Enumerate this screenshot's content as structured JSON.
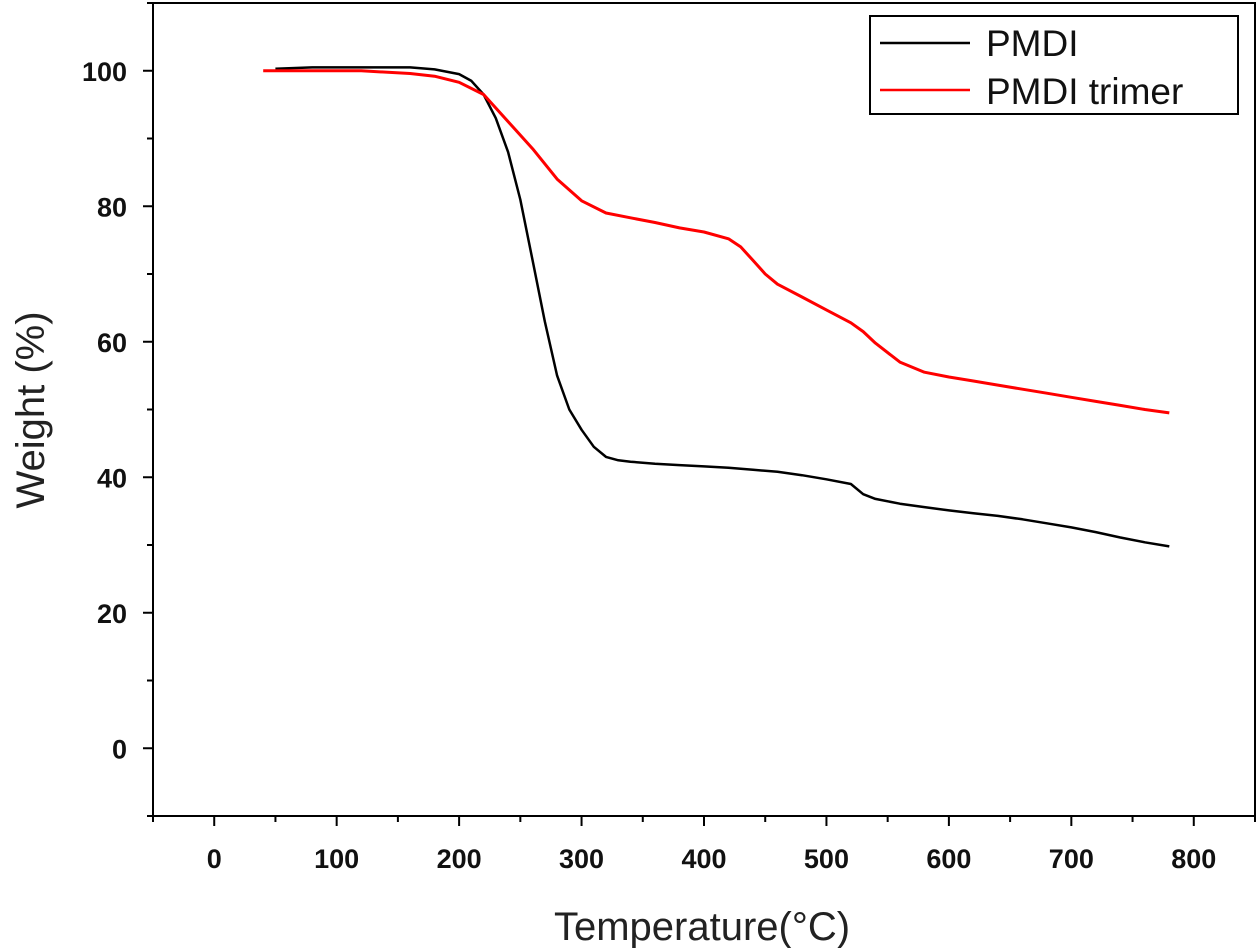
{
  "chart_data": {
    "type": "line",
    "title": "",
    "xlabel": "Temperature(°C)",
    "ylabel": "Weight (%)",
    "xlim": [
      -50,
      850
    ],
    "ylim": [
      -10,
      110
    ],
    "xticks": [
      0,
      100,
      200,
      300,
      400,
      500,
      600,
      700,
      800
    ],
    "yticks": [
      0,
      20,
      40,
      60,
      80,
      100
    ],
    "grid": false,
    "legend_position": "top-right",
    "series": [
      {
        "name": "PMDI",
        "color": "#000000",
        "x": [
          50,
          80,
          120,
          160,
          180,
          200,
          210,
          220,
          230,
          240,
          250,
          260,
          270,
          280,
          290,
          300,
          310,
          320,
          330,
          340,
          360,
          380,
          400,
          420,
          440,
          460,
          480,
          500,
          520,
          530,
          540,
          560,
          580,
          600,
          620,
          640,
          660,
          680,
          700,
          720,
          740,
          760,
          780
        ],
        "y": [
          100.3,
          100.5,
          100.5,
          100.5,
          100.2,
          99.5,
          98.5,
          96.5,
          93,
          88,
          81,
          72,
          63,
          55,
          50,
          47,
          44.5,
          43,
          42.5,
          42.3,
          42,
          41.8,
          41.6,
          41.4,
          41.1,
          40.8,
          40.3,
          39.7,
          39.0,
          37.5,
          36.8,
          36.1,
          35.6,
          35.1,
          34.7,
          34.3,
          33.8,
          33.2,
          32.6,
          31.9,
          31.1,
          30.4,
          29.8
        ]
      },
      {
        "name": "PMDI trimer",
        "color": "#ff0000",
        "x": [
          40,
          80,
          120,
          160,
          180,
          200,
          220,
          240,
          260,
          280,
          300,
          320,
          340,
          360,
          380,
          400,
          420,
          430,
          440,
          450,
          460,
          480,
          500,
          520,
          530,
          540,
          560,
          580,
          600,
          620,
          640,
          660,
          680,
          700,
          720,
          740,
          760,
          780
        ],
        "y": [
          100,
          100,
          100,
          99.6,
          99.2,
          98.3,
          96.5,
          92.5,
          88.5,
          84,
          80.8,
          79,
          78.3,
          77.6,
          76.8,
          76.2,
          75.2,
          74,
          72,
          70,
          68.5,
          66.6,
          64.7,
          62.8,
          61.5,
          59.8,
          57,
          55.5,
          54.8,
          54.2,
          53.6,
          53,
          52.4,
          51.8,
          51.2,
          50.6,
          50,
          49.5
        ]
      }
    ]
  }
}
